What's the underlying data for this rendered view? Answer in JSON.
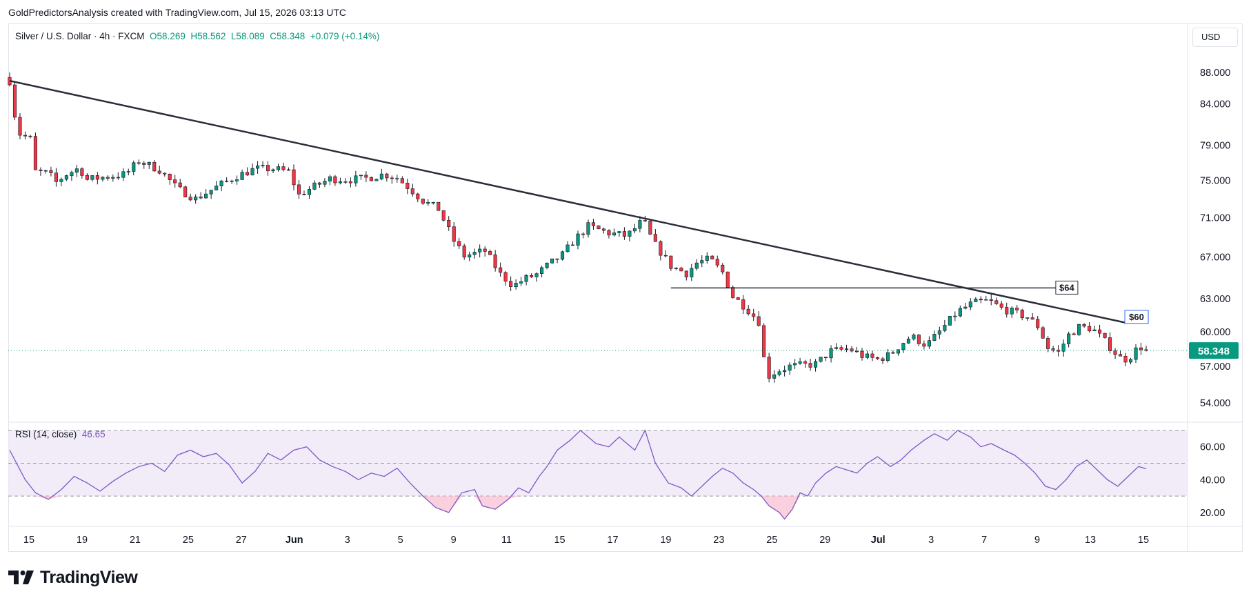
{
  "header": {
    "credit": "GoldPredictorsAnalysis created with TradingView.com, Jul 15, 2026 03:13 UTC"
  },
  "legend": {
    "symbol": "Silver / U.S. Dollar · 4h · FXCM",
    "open": "O58.269",
    "high": "H58.562",
    "low": "L58.089",
    "close": "C58.348",
    "change": "+0.079 (+0.14%)"
  },
  "rsi_legend": {
    "label": "RSI (14, close)",
    "value": "46.65"
  },
  "currency_button": "USD",
  "branding": {
    "wordmark": "TradingView",
    "icon": "tradingview-logo-icon"
  },
  "colors": {
    "up": "#089981",
    "down": "#f23645",
    "rsi_line": "#7e57c2",
    "rsi_band": "#ede7f6",
    "trendline": "#2a2e39",
    "last_price": "#089981"
  },
  "chart_data": [
    {
      "type": "candlestick",
      "title": "Silver / U.S. Dollar · 4h · FXCM",
      "y_axis_ticks": [
        "88.000",
        "84.000",
        "79.000",
        "75.000",
        "71.000",
        "67.000",
        "63.000",
        "60.000",
        "57.000",
        "54.000"
      ],
      "x_axis_ticks": [
        "15",
        "19",
        "21",
        "25",
        "27",
        "Jun",
        "3",
        "5",
        "9",
        "11",
        "15",
        "17",
        "19",
        "23",
        "25",
        "29",
        "Jul",
        "3",
        "7",
        "9",
        "13",
        "15"
      ],
      "y_scale": "log",
      "ylim": [
        52.6,
        94.0
      ],
      "last_price": 58.348,
      "last_price_label": "58.348",
      "series": [
        {
          "name": "price",
          "points": [
            [
              0,
              86.9
            ],
            [
              3,
              80.5
            ],
            [
              9,
              79.6
            ],
            [
              10,
              76.0
            ],
            [
              15,
              75.8
            ],
            [
              18,
              74.8
            ],
            [
              22,
              75.7
            ],
            [
              27,
              76.4
            ],
            [
              30,
              75.1
            ],
            [
              37,
              75.4
            ],
            [
              45,
              75.7
            ],
            [
              50,
              77.2
            ],
            [
              58,
              76.2
            ],
            [
              65,
              74.1
            ],
            [
              72,
              73.0
            ],
            [
              82,
              74.6
            ],
            [
              88,
              75.5
            ],
            [
              95,
              76.3
            ],
            [
              102,
              76.3
            ],
            [
              108,
              76.0
            ],
            [
              112,
              73.4
            ],
            [
              117,
              74.2
            ],
            [
              124,
              75.2
            ],
            [
              131,
              75.1
            ],
            [
              137,
              75.2
            ],
            [
              145,
              75.7
            ],
            [
              150,
              75.3
            ],
            [
              155,
              74.1
            ],
            [
              160,
              72.8
            ],
            [
              166,
              71.9
            ],
            [
              172,
              68.6
            ],
            [
              176,
              67.1
            ],
            [
              184,
              67.6
            ],
            [
              190,
              65.3
            ],
            [
              195,
              64.2
            ],
            [
              199,
              64.8
            ],
            [
              204,
              65.3
            ],
            [
              209,
              66.3
            ],
            [
              214,
              67.2
            ],
            [
              219,
              68.8
            ],
            [
              224,
              70.1
            ],
            [
              232,
              69.4
            ],
            [
              239,
              69.1
            ],
            [
              244,
              70.4
            ],
            [
              246,
              70.3
            ],
            [
              249,
              68.5
            ],
            [
              252,
              67.5
            ],
            [
              256,
              66.1
            ],
            [
              262,
              65.4
            ],
            [
              266,
              66.4
            ],
            [
              271,
              66.8
            ],
            [
              276,
              65.5
            ],
            [
              280,
              63.2
            ],
            [
              285,
              62.2
            ],
            [
              290,
              60.9
            ],
            [
              293,
              56.1
            ],
            [
              297,
              56.6
            ],
            [
              302,
              57.0
            ],
            [
              307,
              57.1
            ],
            [
              312,
              57.2
            ],
            [
              318,
              58.3
            ],
            [
              325,
              58.5
            ],
            [
              331,
              57.8
            ],
            [
              336,
              57.6
            ],
            [
              341,
              58.0
            ],
            [
              345,
              58.9
            ],
            [
              349,
              59.6
            ],
            [
              355,
              58.8
            ],
            [
              360,
              60.0
            ],
            [
              367,
              61.8
            ],
            [
              373,
              62.6
            ],
            [
              379,
              62.8
            ],
            [
              384,
              62.1
            ],
            [
              389,
              61.7
            ],
            [
              394,
              61.3
            ],
            [
              398,
              60.5
            ],
            [
              402,
              58.6
            ],
            [
              406,
              58.2
            ],
            [
              410,
              59.7
            ],
            [
              414,
              60.4
            ],
            [
              419,
              60.3
            ],
            [
              423,
              59.4
            ],
            [
              427,
              58.4
            ],
            [
              431,
              57.5
            ],
            [
              435,
              58.0
            ],
            [
              437,
              58.8
            ],
            [
              440,
              58.4
            ]
          ]
        }
      ],
      "annotations": [
        {
          "type": "trendline",
          "from": [
            0,
            86.9
          ],
          "to": [
            432,
            60.8
          ]
        },
        {
          "type": "horizontal",
          "y": 64.0,
          "x_range": [
            256,
            405
          ],
          "label": "$64"
        },
        {
          "type": "label",
          "text": "$60",
          "at": [
            432,
            60.8
          ]
        }
      ]
    },
    {
      "type": "line",
      "title": "RSI (14, close)",
      "y_axis_ticks": [
        "60.00",
        "40.00",
        "20.00"
      ],
      "ylim": [
        12,
        75
      ],
      "band": [
        30,
        70
      ],
      "midline": 50,
      "last_value": 46.65,
      "series": [
        {
          "name": "RSI",
          "points": [
            [
              0,
              58
            ],
            [
              6,
              40
            ],
            [
              10,
              32
            ],
            [
              15,
              28
            ],
            [
              20,
              34
            ],
            [
              25,
              42
            ],
            [
              30,
              38
            ],
            [
              35,
              33
            ],
            [
              40,
              39
            ],
            [
              45,
              44
            ],
            [
              50,
              48
            ],
            [
              55,
              50
            ],
            [
              60,
              45
            ],
            [
              65,
              55
            ],
            [
              70,
              58
            ],
            [
              75,
              54
            ],
            [
              80,
              56
            ],
            [
              85,
              49
            ],
            [
              90,
              38
            ],
            [
              95,
              45
            ],
            [
              100,
              56
            ],
            [
              105,
              52
            ],
            [
              110,
              58
            ],
            [
              115,
              60
            ],
            [
              120,
              52
            ],
            [
              125,
              48
            ],
            [
              130,
              45
            ],
            [
              135,
              40
            ],
            [
              140,
              44
            ],
            [
              145,
              42
            ],
            [
              150,
              47
            ],
            [
              155,
              38
            ],
            [
              160,
              30
            ],
            [
              165,
              23
            ],
            [
              170,
              20
            ],
            [
              175,
              32
            ],
            [
              180,
              34
            ],
            [
              183,
              24
            ],
            [
              188,
              22
            ],
            [
              193,
              28
            ],
            [
              197,
              35
            ],
            [
              201,
              32
            ],
            [
              205,
              42
            ],
            [
              208,
              48
            ],
            [
              212,
              58
            ],
            [
              217,
              64
            ],
            [
              221,
              70
            ],
            [
              227,
              62
            ],
            [
              232,
              60
            ],
            [
              236,
              66
            ],
            [
              242,
              58
            ],
            [
              246,
              70
            ],
            [
              250,
              50
            ],
            [
              255,
              38
            ],
            [
              260,
              35
            ],
            [
              264,
              30
            ],
            [
              268,
              36
            ],
            [
              272,
              42
            ],
            [
              276,
              47
            ],
            [
              280,
              44
            ],
            [
              284,
              38
            ],
            [
              288,
              34
            ],
            [
              291,
              30
            ],
            [
              294,
              24
            ],
            [
              298,
              20
            ],
            [
              300,
              16
            ],
            [
              303,
              22
            ],
            [
              306,
              32
            ],
            [
              309,
              30
            ],
            [
              312,
              38
            ],
            [
              316,
              44
            ],
            [
              320,
              48
            ],
            [
              324,
              46
            ],
            [
              328,
              44
            ],
            [
              332,
              50
            ],
            [
              336,
              54
            ],
            [
              341,
              48
            ],
            [
              345,
              52
            ],
            [
              349,
              58
            ],
            [
              354,
              64
            ],
            [
              358,
              68
            ],
            [
              363,
              64
            ],
            [
              367,
              70
            ],
            [
              372,
              66
            ],
            [
              376,
              60
            ],
            [
              380,
              62
            ],
            [
              385,
              58
            ],
            [
              389,
              55
            ],
            [
              393,
              50
            ],
            [
              397,
              44
            ],
            [
              401,
              36
            ],
            [
              405,
              34
            ],
            [
              409,
              40
            ],
            [
              413,
              48
            ],
            [
              417,
              52
            ],
            [
              421,
              46
            ],
            [
              425,
              40
            ],
            [
              429,
              36
            ],
            [
              433,
              42
            ],
            [
              437,
              48
            ],
            [
              440,
              46.65
            ]
          ]
        }
      ]
    }
  ]
}
